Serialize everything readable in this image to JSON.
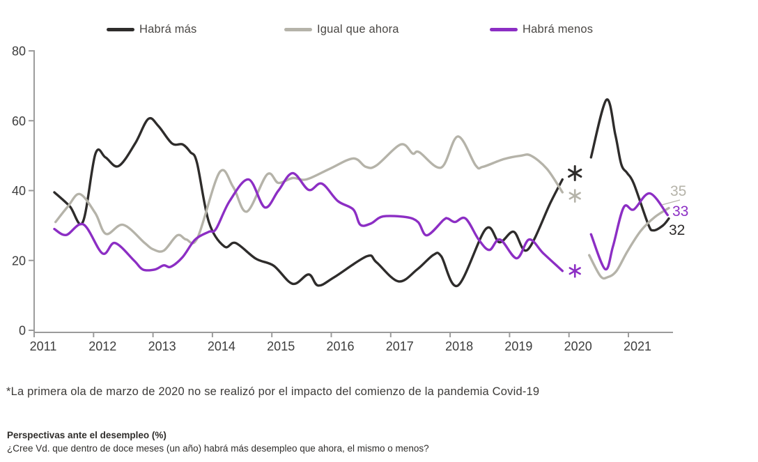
{
  "legend": {
    "items": [
      {
        "label": "Habrá más",
        "color": "#2e2c2b"
      },
      {
        "label": "Igual que ahora",
        "color": "#b5b3a9"
      },
      {
        "label": "Habrá menos",
        "color": "#8c2ec4"
      }
    ]
  },
  "footnote": "*La primera ola de marzo de 2020 no se realizó por el impacto del comienzo de la pandemia Covid-19",
  "caption_title": "Perspectivas ante el desempleo (%)",
  "caption_question": "¿Cree Vd. que dentro de doce meses (un año) habrá más desempleo que ahora, el mismo o menos?",
  "chart_data": {
    "type": "line",
    "title": "Perspectivas ante el desempleo (%)",
    "question": "¿Cree Vd. que dentro de doce meses (un año) habrá más desempleo que ahora, el mismo o menos?",
    "xlabel": "",
    "ylabel": "",
    "x_ticks": [
      2011,
      2012,
      2013,
      2014,
      2015,
      2016,
      2017,
      2018,
      2019,
      2020,
      2021
    ],
    "y_ticks": [
      0,
      20,
      40,
      60,
      80
    ],
    "xlim": [
      2011,
      2021.75
    ],
    "ylim": [
      0,
      80
    ],
    "grid": false,
    "legend_position": "top",
    "gap_note": "Wave of March 2020 not conducted (Covid-19) - lines broken, positions marked with asterisks",
    "series": [
      {
        "name": "Habrá más",
        "color": "#2e2c2b",
        "segments": [
          [
            [
              2011.34,
              39.5
            ],
            [
              2011.6,
              35.5
            ],
            [
              2011.82,
              31
            ],
            [
              2012.03,
              50.5
            ],
            [
              2012.2,
              49.5
            ],
            [
              2012.42,
              47
            ],
            [
              2012.7,
              53.5
            ],
            [
              2012.92,
              60.5
            ],
            [
              2013.09,
              58.5
            ],
            [
              2013.32,
              53.5
            ],
            [
              2013.5,
              53.2
            ],
            [
              2013.63,
              51
            ],
            [
              2013.74,
              48
            ],
            [
              2013.94,
              31
            ],
            [
              2014.2,
              24
            ],
            [
              2014.39,
              25
            ],
            [
              2014.73,
              20.5
            ],
            [
              2015.03,
              18.5
            ],
            [
              2015.35,
              13.3
            ],
            [
              2015.62,
              16
            ],
            [
              2015.78,
              12.8
            ],
            [
              2016.05,
              15.2
            ],
            [
              2016.6,
              21.2
            ],
            [
              2016.76,
              19.5
            ],
            [
              2017.13,
              14
            ],
            [
              2017.45,
              17.5
            ],
            [
              2017.72,
              21.6
            ],
            [
              2017.85,
              21.2
            ],
            [
              2018.13,
              12.8
            ],
            [
              2018.6,
              29
            ],
            [
              2018.83,
              25.2
            ],
            [
              2019.07,
              28.2
            ],
            [
              2019.3,
              23
            ],
            [
              2019.69,
              36.6
            ],
            [
              2019.89,
              43.2
            ]
          ],
          [
            [
              2020.37,
              49.5
            ],
            [
              2020.63,
              66
            ],
            [
              2020.78,
              56
            ],
            [
              2020.88,
              47.5
            ],
            [
              2020.98,
              45
            ],
            [
              2021.09,
              42
            ],
            [
              2021.33,
              30.5
            ],
            [
              2021.42,
              28.6
            ],
            [
              2021.58,
              30
            ],
            [
              2021.68,
              32
            ]
          ]
        ]
      },
      {
        "name": "Igual que ahora",
        "color": "#b5b3a9",
        "segments": [
          [
            [
              2011.36,
              31
            ],
            [
              2011.57,
              35.5
            ],
            [
              2011.77,
              39
            ],
            [
              2012.03,
              33.5
            ],
            [
              2012.21,
              27.6
            ],
            [
              2012.5,
              30.2
            ],
            [
              2012.86,
              25
            ],
            [
              2013.0,
              23.2
            ],
            [
              2013.18,
              22.8
            ],
            [
              2013.41,
              27.2
            ],
            [
              2013.56,
              26
            ],
            [
              2013.75,
              26.5
            ],
            [
              2014.12,
              45.2
            ],
            [
              2014.35,
              41
            ],
            [
              2014.58,
              34
            ],
            [
              2014.92,
              44.6
            ],
            [
              2015.11,
              42.2
            ],
            [
              2015.35,
              43.6
            ],
            [
              2015.58,
              43.2
            ],
            [
              2015.97,
              46.2
            ],
            [
              2016.37,
              49.2
            ],
            [
              2016.58,
              46.8
            ],
            [
              2016.76,
              47.2
            ],
            [
              2017.17,
              53.2
            ],
            [
              2017.37,
              50.6
            ],
            [
              2017.48,
              51
            ],
            [
              2017.85,
              46.6
            ],
            [
              2018.13,
              55.5
            ],
            [
              2018.43,
              47.2
            ],
            [
              2018.55,
              46.8
            ],
            [
              2018.9,
              49
            ],
            [
              2019.19,
              50
            ],
            [
              2019.36,
              50
            ],
            [
              2019.63,
              46.2
            ],
            [
              2019.89,
              39.5
            ]
          ],
          [
            [
              2020.34,
              21.5
            ],
            [
              2020.53,
              15.5
            ],
            [
              2020.65,
              15.2
            ],
            [
              2020.8,
              17
            ],
            [
              2020.98,
              22.5
            ],
            [
              2021.21,
              28.5
            ],
            [
              2021.45,
              32.5
            ],
            [
              2021.68,
              35
            ]
          ]
        ]
      },
      {
        "name": "Habrá menos",
        "color": "#8c2ec4",
        "segments": [
          [
            [
              2011.34,
              29
            ],
            [
              2011.54,
              27.3
            ],
            [
              2011.83,
              30.3
            ],
            [
              2012.15,
              22
            ],
            [
              2012.36,
              25
            ],
            [
              2012.68,
              20
            ],
            [
              2012.83,
              17.4
            ],
            [
              2013.03,
              17.4
            ],
            [
              2013.18,
              18.6
            ],
            [
              2013.3,
              18.2
            ],
            [
              2013.5,
              21
            ],
            [
              2013.71,
              26
            ],
            [
              2013.94,
              28.2
            ],
            [
              2014.06,
              29
            ],
            [
              2014.29,
              37
            ],
            [
              2014.61,
              43.2
            ],
            [
              2014.88,
              35.2
            ],
            [
              2015.11,
              40
            ],
            [
              2015.35,
              45
            ],
            [
              2015.62,
              40.2
            ],
            [
              2015.84,
              42
            ],
            [
              2016.11,
              37
            ],
            [
              2016.37,
              34.6
            ],
            [
              2016.49,
              30.2
            ],
            [
              2016.67,
              30.6
            ],
            [
              2016.87,
              32.6
            ],
            [
              2017.26,
              32.4
            ],
            [
              2017.46,
              31
            ],
            [
              2017.61,
              27.2
            ],
            [
              2017.89,
              31.6
            ],
            [
              2017.96,
              32
            ],
            [
              2018.08,
              31
            ],
            [
              2018.26,
              32
            ],
            [
              2018.48,
              26
            ],
            [
              2018.66,
              23
            ],
            [
              2018.84,
              26
            ],
            [
              2019.12,
              20.6
            ],
            [
              2019.33,
              26
            ],
            [
              2019.57,
              22
            ],
            [
              2019.89,
              17
            ]
          ],
          [
            [
              2020.37,
              27.5
            ],
            [
              2020.61,
              17.5
            ],
            [
              2020.74,
              24
            ],
            [
              2020.92,
              35.2
            ],
            [
              2021.09,
              34.6
            ],
            [
              2021.36,
              39.2
            ],
            [
              2021.66,
              33
            ]
          ]
        ]
      }
    ],
    "missing_wave_markers": [
      {
        "series": "Habrá más",
        "x": 2020.1,
        "value": 45,
        "symbol": "*"
      },
      {
        "series": "Igual que ahora",
        "x": 2020.1,
        "value": 38.5,
        "symbol": "*"
      },
      {
        "series": "Habrá menos",
        "x": 2020.1,
        "value": 17,
        "symbol": "*"
      }
    ],
    "end_labels": [
      {
        "series": "Igual que ahora",
        "text": "35",
        "value": 35
      },
      {
        "series": "Habrá menos",
        "text": "33",
        "value": 33
      },
      {
        "series": "Habrá más",
        "text": "32",
        "value": 32
      }
    ]
  }
}
